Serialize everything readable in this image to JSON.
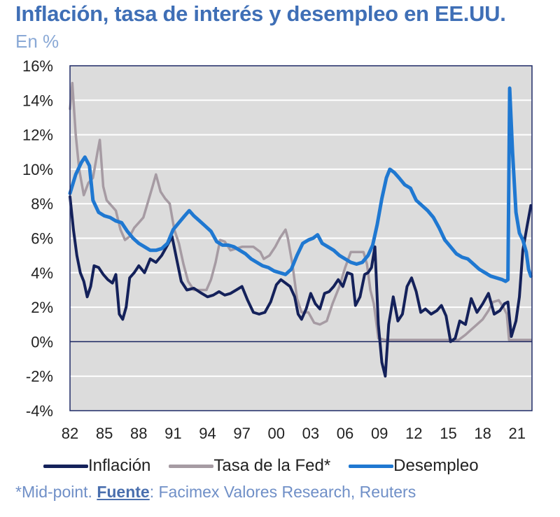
{
  "title": "Inflación, tasa de interés y desempleo en EE.UU.",
  "subtitle": "En %",
  "footnote": {
    "prefix": "*Mid-point. ",
    "source_label": "Fuente",
    "source_text": ": Facimex Valores Research, Reuters"
  },
  "colors": {
    "title": "#3f6fb6",
    "plot_background": "#dcdcdc",
    "grid": "#ffffff",
    "zero_line": "#1a2560",
    "inflation": "#14215a",
    "fed_rate": "#a69ba3",
    "unemployment": "#1f78d1"
  },
  "chart_data": {
    "type": "line",
    "title": "Inflación, tasa de interés y desempleo en EE.UU.",
    "ylabel": "En %",
    "xlabel": "",
    "xlim": [
      1982,
      2022.3
    ],
    "ylim": [
      -4,
      16
    ],
    "yticks": [
      16,
      14,
      12,
      10,
      8,
      6,
      4,
      2,
      0,
      -2,
      -4
    ],
    "ytick_labels": [
      "16%",
      "14%",
      "12%",
      "10%",
      "8%",
      "6%",
      "4%",
      "2%",
      "0%",
      "-2%",
      "-4%"
    ],
    "xticks": [
      1982,
      1985,
      1988,
      1991,
      1994,
      1997,
      2000,
      2003,
      2006,
      2009,
      2012,
      2015,
      2018,
      2021
    ],
    "xtick_labels": [
      "82",
      "85",
      "88",
      "91",
      "94",
      "97",
      "00",
      "03",
      "06",
      "09",
      "12",
      "15",
      "18",
      "21"
    ],
    "legend_position": "bottom",
    "series": [
      {
        "name": "Inflación",
        "color": "#14215a",
        "x": [
          1982.0,
          1982.3,
          1982.6,
          1982.9,
          1983.2,
          1983.5,
          1983.8,
          1984.1,
          1984.5,
          1984.9,
          1985.3,
          1985.7,
          1986.0,
          1986.3,
          1986.6,
          1986.9,
          1987.2,
          1987.6,
          1988.0,
          1988.5,
          1989.0,
          1989.5,
          1990.0,
          1990.5,
          1990.9,
          1991.3,
          1991.7,
          1992.2,
          1992.8,
          1993.5,
          1994.0,
          1994.5,
          1995.0,
          1995.5,
          1996.0,
          1996.5,
          1997.0,
          1997.5,
          1998.0,
          1998.5,
          1999.0,
          1999.5,
          2000.0,
          2000.4,
          2000.8,
          2001.2,
          2001.6,
          2001.9,
          2002.2,
          2002.6,
          2003.0,
          2003.4,
          2003.8,
          2004.2,
          2004.6,
          2005.0,
          2005.4,
          2005.8,
          2006.2,
          2006.6,
          2006.9,
          2007.3,
          2007.7,
          2008.0,
          2008.3,
          2008.6,
          2008.9,
          2009.2,
          2009.5,
          2009.8,
          2010.2,
          2010.6,
          2011.0,
          2011.4,
          2011.8,
          2012.2,
          2012.6,
          2013.0,
          2013.5,
          2014.0,
          2014.4,
          2014.8,
          2015.2,
          2015.6,
          2016.0,
          2016.5,
          2017.0,
          2017.5,
          2018.0,
          2018.5,
          2019.0,
          2019.5,
          2019.9,
          2020.2,
          2020.5,
          2020.9,
          2021.2,
          2021.5,
          2021.9,
          2022.2
        ],
        "values": [
          8.4,
          6.5,
          5.0,
          4.0,
          3.5,
          2.6,
          3.2,
          4.4,
          4.3,
          3.9,
          3.6,
          3.4,
          3.9,
          1.6,
          1.3,
          2.0,
          3.7,
          4.0,
          4.4,
          4.0,
          4.8,
          4.6,
          5.0,
          5.6,
          6.1,
          4.8,
          3.5,
          3.0,
          3.1,
          2.8,
          2.6,
          2.7,
          2.9,
          2.7,
          2.8,
          3.0,
          3.2,
          2.4,
          1.7,
          1.6,
          1.7,
          2.3,
          3.3,
          3.6,
          3.4,
          3.2,
          2.6,
          1.6,
          1.3,
          1.9,
          2.8,
          2.2,
          1.9,
          2.8,
          2.9,
          3.2,
          3.6,
          3.2,
          4.0,
          3.9,
          2.1,
          2.6,
          3.9,
          4.0,
          4.3,
          5.5,
          1.0,
          -1.2,
          -2.0,
          1.0,
          2.6,
          1.2,
          1.6,
          3.2,
          3.7,
          2.9,
          1.7,
          1.9,
          1.6,
          1.8,
          2.1,
          1.5,
          0.0,
          0.2,
          1.2,
          1.0,
          2.5,
          1.7,
          2.2,
          2.8,
          1.6,
          1.8,
          2.2,
          2.3,
          0.3,
          1.2,
          2.6,
          5.3,
          6.8,
          7.9
        ]
      },
      {
        "name": "Tasa de la Fed*",
        "color": "#a69ba3",
        "x": [
          1982.0,
          1982.2,
          1982.5,
          1982.8,
          1983.2,
          1983.6,
          1984.0,
          1984.4,
          1984.6,
          1984.9,
          1985.2,
          1985.6,
          1986.0,
          1986.4,
          1986.8,
          1987.2,
          1987.6,
          1988.0,
          1988.4,
          1988.8,
          1989.2,
          1989.5,
          1989.9,
          1990.3,
          1990.7,
          1991.1,
          1991.5,
          1991.9,
          1992.3,
          1992.8,
          1993.4,
          1993.9,
          1994.3,
          1994.7,
          1995.1,
          1995.5,
          1996.0,
          1997.0,
          1998.0,
          1998.6,
          1998.9,
          1999.4,
          1999.9,
          2000.3,
          2000.8,
          2001.0,
          2001.4,
          2001.8,
          2002.2,
          2002.8,
          2003.3,
          2003.8,
          2004.4,
          2004.9,
          2005.5,
          2006.0,
          2006.5,
          2007.0,
          2007.6,
          2007.9,
          2008.2,
          2008.5,
          2008.9,
          2009.5,
          2012.0,
          2015.9,
          2016.5,
          2017.0,
          2017.5,
          2018.0,
          2018.5,
          2018.9,
          2019.4,
          2019.8,
          2020.1,
          2020.3,
          2021.0,
          2022.2
        ],
        "values": [
          13.5,
          15.0,
          12.0,
          10.0,
          8.5,
          9.2,
          9.5,
          11.0,
          11.7,
          9.0,
          8.2,
          7.9,
          7.6,
          6.5,
          5.9,
          6.1,
          6.6,
          6.9,
          7.2,
          8.1,
          9.0,
          9.7,
          8.7,
          8.3,
          8.0,
          6.5,
          5.7,
          4.5,
          3.5,
          3.0,
          3.0,
          3.0,
          3.6,
          4.6,
          5.9,
          5.8,
          5.3,
          5.5,
          5.5,
          5.2,
          4.8,
          5.0,
          5.5,
          6.0,
          6.5,
          6.0,
          4.5,
          2.5,
          1.7,
          1.7,
          1.1,
          1.0,
          1.2,
          2.2,
          3.2,
          4.3,
          5.2,
          5.2,
          5.2,
          4.5,
          3.0,
          2.2,
          0.2,
          0.1,
          0.1,
          0.1,
          0.4,
          0.7,
          1.0,
          1.3,
          1.8,
          2.3,
          2.4,
          2.0,
          1.6,
          0.1,
          0.1,
          0.1
        ]
      },
      {
        "name": "Desempleo",
        "color": "#1f78d1",
        "x": [
          1982.0,
          1982.5,
          1983.0,
          1983.3,
          1983.7,
          1984.0,
          1984.5,
          1985.0,
          1985.5,
          1986.0,
          1986.5,
          1987.0,
          1987.5,
          1988.0,
          1988.5,
          1989.0,
          1989.5,
          1990.0,
          1990.5,
          1991.0,
          1991.5,
          1992.0,
          1992.4,
          1992.8,
          1993.3,
          1993.8,
          1994.3,
          1994.8,
          1995.3,
          1995.8,
          1996.3,
          1996.8,
          1997.3,
          1997.8,
          1998.3,
          1998.8,
          1999.3,
          1999.8,
          2000.3,
          2000.8,
          2001.3,
          2001.8,
          2002.3,
          2002.8,
          2003.2,
          2003.6,
          2004.0,
          2004.5,
          2005.0,
          2005.5,
          2006.0,
          2006.5,
          2007.0,
          2007.5,
          2008.0,
          2008.4,
          2008.8,
          2009.2,
          2009.6,
          2009.9,
          2010.3,
          2010.7,
          2011.2,
          2011.7,
          2012.2,
          2012.7,
          2013.2,
          2013.7,
          2014.2,
          2014.7,
          2015.2,
          2015.7,
          2016.2,
          2016.7,
          2017.2,
          2017.7,
          2018.2,
          2018.7,
          2019.2,
          2019.7,
          2020.0,
          2020.2,
          2020.35,
          2020.6,
          2020.9,
          2021.2,
          2021.5,
          2021.8,
          2022.0,
          2022.2
        ],
        "values": [
          8.6,
          9.7,
          10.4,
          10.7,
          10.2,
          8.2,
          7.5,
          7.3,
          7.2,
          7.0,
          6.9,
          6.4,
          6.0,
          5.7,
          5.5,
          5.3,
          5.3,
          5.4,
          5.7,
          6.5,
          6.9,
          7.3,
          7.6,
          7.3,
          7.0,
          6.7,
          6.4,
          5.8,
          5.6,
          5.6,
          5.5,
          5.3,
          5.1,
          4.8,
          4.6,
          4.4,
          4.3,
          4.1,
          4.0,
          3.9,
          4.2,
          5.0,
          5.7,
          5.9,
          6.0,
          6.2,
          5.7,
          5.5,
          5.3,
          5.0,
          4.8,
          4.6,
          4.5,
          4.6,
          5.0,
          5.6,
          6.8,
          8.3,
          9.5,
          10.0,
          9.8,
          9.5,
          9.1,
          8.9,
          8.2,
          7.9,
          7.6,
          7.2,
          6.6,
          5.9,
          5.5,
          5.1,
          4.9,
          4.8,
          4.5,
          4.2,
          4.0,
          3.8,
          3.7,
          3.6,
          3.5,
          3.6,
          14.7,
          11.0,
          7.5,
          6.3,
          5.9,
          5.2,
          4.2,
          3.8
        ]
      }
    ]
  }
}
